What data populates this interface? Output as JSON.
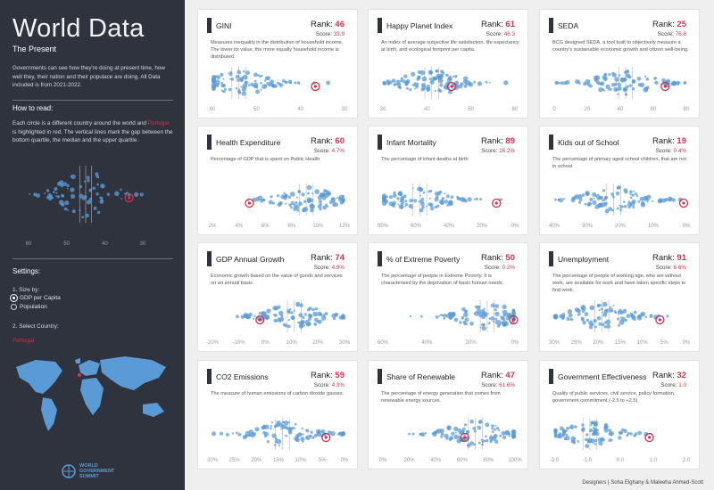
{
  "sidebar": {
    "title": "World Data",
    "subtitle": "The Present",
    "intro": "Governments can see how they're doing at present time, how well they, their nation and their populace are doing. All Data included is from 2021-2022.",
    "how_to_read_heading": "How to read:",
    "how_to_read_pre": "Each circle is a different country around the world and ",
    "how_to_read_country": "Portugal",
    "how_to_read_post": " is highlighted in red. The vertical lines mark the gap between the bottom quartile, the median and the upper quartile.",
    "example_axis": [
      "60",
      "50",
      "40",
      "30"
    ],
    "settings_heading": "Settings:",
    "size_by_label": "1. Size by:",
    "size_options": [
      "GDP per Capita",
      "Population"
    ],
    "selected_size_option": "GDP per Capita",
    "select_country_label": "2. Select Country:",
    "selected_country": "Portugal",
    "logo_text": "WORLD GOVERNMENT SUMMIT"
  },
  "cards": [
    {
      "title": "GINI",
      "rank_label": "Rank:",
      "rank": "46",
      "score_label": "Score:",
      "score": "33.9",
      "description": "Measures inequality in the distribution of household income. The lower its value, the more equally household income is distributed.",
      "axis": [
        "60",
        "50",
        "40",
        "30"
      ],
      "highlight": 0.78
    },
    {
      "title": "Happy Planet Index",
      "rank_label": "Rank:",
      "rank": "61",
      "score_label": "Score:",
      "score": "46.3",
      "description": "An index of average subjective life satisfaction, life expectancy at birth, and ecological footprint per capita.",
      "axis": [
        "30",
        "40",
        "50",
        "60"
      ],
      "highlight": 0.52
    },
    {
      "title": "SEDA",
      "rank_label": "Rank:",
      "rank": "25",
      "score_label": "Score:",
      "score": "76.8",
      "description": "BCG designed SEDA, a tool built to objectively measure a country's sustainable economic growth and citizen well-being.",
      "axis": [
        "0",
        "20",
        "40",
        "60",
        "80"
      ],
      "highlight": 0.84
    },
    {
      "title": "Health Expenditure",
      "rank_label": "Rank:",
      "rank": "60",
      "score_label": "Score:",
      "score": "4.7%",
      "description": "Percentage of GDP that is spent on Public Health",
      "axis": [
        "2%",
        "4%",
        "6%",
        "8%",
        "10%",
        "12%"
      ],
      "highlight": 0.28
    },
    {
      "title": "Infant Mortality",
      "rank_label": "Rank:",
      "rank": "89",
      "score_label": "Score:",
      "score": "16.2%",
      "description": "The percentage of infant deaths at birth",
      "axis": [
        "80%",
        "60%",
        "40%",
        "20%",
        "0%"
      ],
      "highlight": 0.86
    },
    {
      "title": "Kids out of School",
      "rank_label": "Rank:",
      "rank": "19",
      "score_label": "Score:",
      "score": "0.4%",
      "description": "The percentage of primary aged school children, that are not in school",
      "axis": [
        "40%",
        "30%",
        "20%",
        "10%",
        "0%"
      ],
      "highlight": 0.98
    },
    {
      "title": "GDP Annual Growth",
      "rank_label": "Rank:",
      "rank": "74",
      "score_label": "Score:",
      "score": "4.9%",
      "description": "Economic growth based on the value of goods and services on an annual basis",
      "axis": [
        "-20%",
        "-10%",
        "0%",
        "10%",
        "20%",
        "30%"
      ],
      "highlight": 0.36
    },
    {
      "title": "% of Extreme Poverty",
      "rank_label": "Rank:",
      "rank": "50",
      "score_label": "Score:",
      "score": "0.2%",
      "description": "The percentage of people in Extreme Poverty. It is characterised by the deprivation of basic human needs.",
      "axis": [
        "60%",
        "40%",
        "20%",
        "0%"
      ],
      "highlight": 0.99
    },
    {
      "title": "Unemployment",
      "rank_label": "Rank:",
      "rank": "91",
      "score_label": "Score:",
      "score": "6.6%",
      "description": "The percentage of people of working age, who are without work, are available for work and have taken specific steps to find work.",
      "axis": [
        "30%",
        "25%",
        "20%",
        "15%",
        "10%",
        "5%",
        "0%"
      ],
      "highlight": 0.8
    },
    {
      "title": "CO2 Emissions",
      "rank_label": "Rank:",
      "rank": "59",
      "score_label": "Score:",
      "score": "4.3%",
      "description": "The measure of human emissions of carbon dioxide gasses.",
      "axis": [
        "30%",
        "25%",
        "20%",
        "15%",
        "10%",
        "5%",
        "0%"
      ],
      "highlight": 0.86
    },
    {
      "title": "Share of Renewable",
      "rank_label": "Rank:",
      "rank": "47",
      "score_label": "Score:",
      "score": "61.6%",
      "description": "The percentage of energy generation that comes from renewable energy sources.",
      "axis": [
        "0%",
        "20%",
        "40%",
        "60%",
        "80%",
        "100%"
      ],
      "highlight": 0.62
    },
    {
      "title": "Government Effectiveness",
      "rank_label": "Rank:",
      "rank": "32",
      "score_label": "Score:",
      "score": "1.0",
      "description": "Quality of public services, civil service, policy formation, government commitment (-2.5 to +2.5).",
      "axis": [
        "-2.0",
        "-1.0",
        "0.0",
        "1.0",
        "2.0"
      ],
      "highlight": 0.72
    }
  ],
  "footer": "Designers | Soha Elghany & Maleeha Ahmed-Scott",
  "colors": {
    "sidebar": "#2e333d",
    "dot": "#5b9bd5",
    "highlight": "#d4304a",
    "background": "#efefef"
  }
}
